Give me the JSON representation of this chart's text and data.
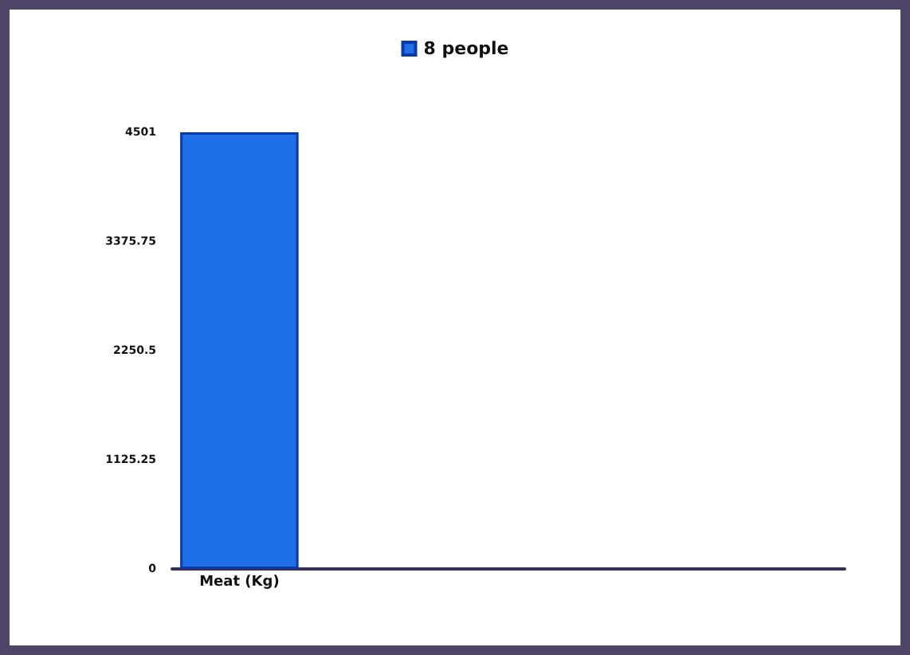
{
  "chart_data": {
    "type": "bar",
    "categories": [
      "Meat (Kg)",
      null,
      null,
      null,
      null
    ],
    "series": [
      {
        "name": "8 people",
        "color": "#1f6fe8",
        "values": [
          4501,
          null,
          null,
          null,
          null
        ]
      }
    ],
    "ylim": [
      0,
      4501
    ],
    "yticks": [
      0,
      1125.25,
      2250.5,
      3375.75,
      4501
    ],
    "grid": false,
    "legend": "top"
  }
}
